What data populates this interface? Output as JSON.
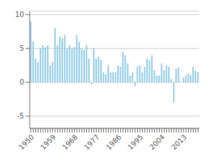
{
  "chart_data": {
    "type": "bar",
    "categories": [
      "1950",
      null,
      null,
      null,
      null,
      null,
      null,
      null,
      null,
      "1959",
      null,
      null,
      null,
      null,
      null,
      null,
      null,
      null,
      "1968",
      null,
      null,
      null,
      null,
      null,
      null,
      null,
      null,
      "1977",
      null,
      null,
      null,
      null,
      null,
      null,
      null,
      null,
      "1986",
      null,
      null,
      null,
      null,
      null,
      null,
      null,
      null,
      "1995",
      null,
      null,
      null,
      null,
      null,
      null,
      null,
      null,
      "2004",
      null,
      null,
      null,
      null,
      null,
      null,
      null,
      null,
      "2013",
      null,
      null,
      null,
      null,
      null,
      null
    ],
    "values": [
      9.0,
      6.0,
      3.5,
      3.0,
      5.0,
      5.5,
      5.2,
      5.5,
      2.5,
      3.0,
      8.0,
      5.5,
      6.8,
      6.5,
      7.0,
      5.0,
      5.5,
      5.0,
      5.2,
      7.0,
      6.0,
      5.0,
      4.8,
      5.5,
      3.5,
      -0.3,
      5.0,
      3.5,
      3.8,
      3.3,
      1.5,
      1.2,
      2.5,
      1.5,
      1.5,
      1.5,
      2.5,
      2.3,
      4.5,
      4.0,
      2.8,
      1.0,
      1.5,
      -0.6,
      2.3,
      2.5,
      1.5,
      2.3,
      3.5,
      3.3,
      4.0,
      1.8,
      1.0,
      1.0,
      2.8,
      1.8,
      2.5,
      2.3,
      0.5,
      -3.0,
      2.0,
      2.2,
      0.0,
      0.7,
      1.0,
      1.3,
      1.1,
      2.3,
      1.7,
      1.5
    ],
    "color": "#8ecae6",
    "ylim": [
      -6.8,
      10.5
    ],
    "yticks": [
      -5,
      0,
      5,
      10
    ],
    "grid": true
  }
}
